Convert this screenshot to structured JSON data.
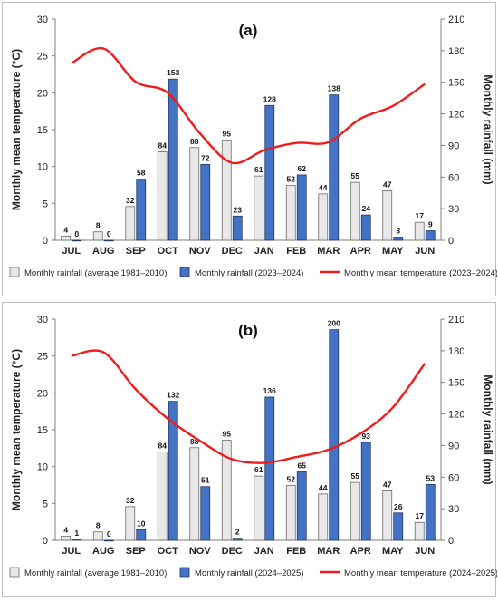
{
  "chart_data": [
    {
      "type": "bar",
      "title": "(a)",
      "categories": [
        "JUL",
        "AUG",
        "SEP",
        "OCT",
        "NOV",
        "DEC",
        "JAN",
        "FEB",
        "MAR",
        "APR",
        "MAY",
        "JUN"
      ],
      "ylabel": "Monthly mean temperature (°C)",
      "y2label": "Monthly rainfall (mm)",
      "ylim": [
        0,
        30
      ],
      "y2lim": [
        0,
        210
      ],
      "yticks": [
        "0",
        "5",
        "10",
        "15",
        "20",
        "25",
        "30"
      ],
      "y2ticks": [
        "0",
        "30",
        "60",
        "90",
        "120",
        "150",
        "180",
        "210"
      ],
      "series": [
        {
          "name": "Monthly rainfall (average 1981–2010)",
          "kind": "bar",
          "axis": "right",
          "color": "#e8e8e8",
          "values": [
            4,
            8,
            32,
            84,
            88,
            95,
            61,
            52,
            44,
            55,
            47,
            17
          ],
          "labels": [
            "4",
            "8",
            "32",
            "84",
            "88",
            "95",
            "61",
            "52",
            "44",
            "55",
            "47",
            "17"
          ]
        },
        {
          "name": "Monthly rainfall (2023–2024)",
          "kind": "bar",
          "axis": "right",
          "color": "#4472c4",
          "values": [
            0,
            0,
            58,
            153,
            72,
            23,
            128,
            62,
            138,
            24,
            3,
            9
          ],
          "labels": [
            "0",
            "0",
            "58",
            "153",
            "72",
            "23",
            "128",
            "62",
            "138",
            "24",
            "3",
            "9"
          ]
        },
        {
          "name": "Monthly mean temperature (2023–2024)",
          "kind": "line",
          "axis": "left",
          "color": "#ee1c1c",
          "values": [
            24,
            26,
            21.5,
            20,
            14.5,
            10.5,
            12.2,
            13.2,
            13.3,
            16.5,
            18.2,
            21.2
          ]
        }
      ],
      "legend_position": "bottom",
      "grid": false
    },
    {
      "type": "bar",
      "title": "(b)",
      "categories": [
        "JUL",
        "AUG",
        "SEP",
        "OCT",
        "NOV",
        "DEC",
        "JAN",
        "FEB",
        "MAR",
        "APR",
        "MAY",
        "JUN"
      ],
      "ylabel": "Monthly mean temperature (°C)",
      "y2label": "Monthly rainfall (mm)",
      "ylim": [
        0,
        30
      ],
      "y2lim": [
        0,
        210
      ],
      "yticks": [
        "0",
        "5",
        "10",
        "15",
        "20",
        "25",
        "30"
      ],
      "y2ticks": [
        "0",
        "30",
        "60",
        "90",
        "120",
        "150",
        "180",
        "210"
      ],
      "series": [
        {
          "name": "Monthly rainfall (average 1981–2010)",
          "kind": "bar",
          "axis": "right",
          "color": "#e8e8e8",
          "values": [
            4,
            8,
            32,
            84,
            88,
            95,
            61,
            52,
            44,
            55,
            47,
            17
          ],
          "labels": [
            "4",
            "8",
            "32",
            "84",
            "88",
            "95",
            "61",
            "52",
            "44",
            "55",
            "47",
            "17"
          ]
        },
        {
          "name": "Monthly rainfall (2024–2025)",
          "kind": "bar",
          "axis": "right",
          "color": "#4472c4",
          "values": [
            1,
            0,
            10,
            132,
            51,
            2,
            136,
            65,
            200,
            93,
            26,
            53
          ],
          "labels": [
            "1",
            "0",
            "10",
            "132",
            "51",
            "2",
            "136",
            "65",
            "200",
            "93",
            "26",
            "53"
          ]
        },
        {
          "name": "Monthly mean temperature (2024–2025)",
          "kind": "line",
          "axis": "left",
          "color": "#ee1c1c",
          "values": [
            25,
            25.5,
            20.5,
            16.5,
            13.5,
            11,
            10.5,
            11.3,
            12.3,
            14.5,
            18,
            24
          ]
        }
      ],
      "legend_position": "bottom",
      "grid": false
    }
  ]
}
